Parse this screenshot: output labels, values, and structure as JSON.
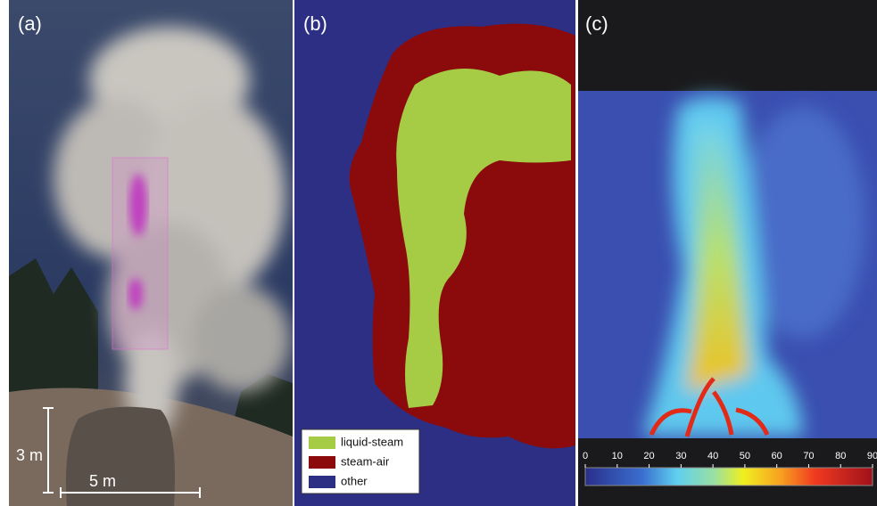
{
  "panels": [
    {
      "label": "(a)",
      "scale_bars": {
        "vertical": "3 m",
        "horizontal": "5 m"
      }
    },
    {
      "label": "(b)",
      "legend": [
        {
          "name": "liquid-steam",
          "color": "#a6cb45"
        },
        {
          "name": "steam-air",
          "color": "#8b0a0c"
        },
        {
          "name": "other",
          "color": "#2d2f84"
        }
      ]
    },
    {
      "label": "(c)",
      "colorbar": {
        "range": [
          0,
          90
        ],
        "ticks": [
          0,
          10,
          20,
          30,
          40,
          50,
          60,
          70,
          80,
          90
        ]
      }
    }
  ]
}
